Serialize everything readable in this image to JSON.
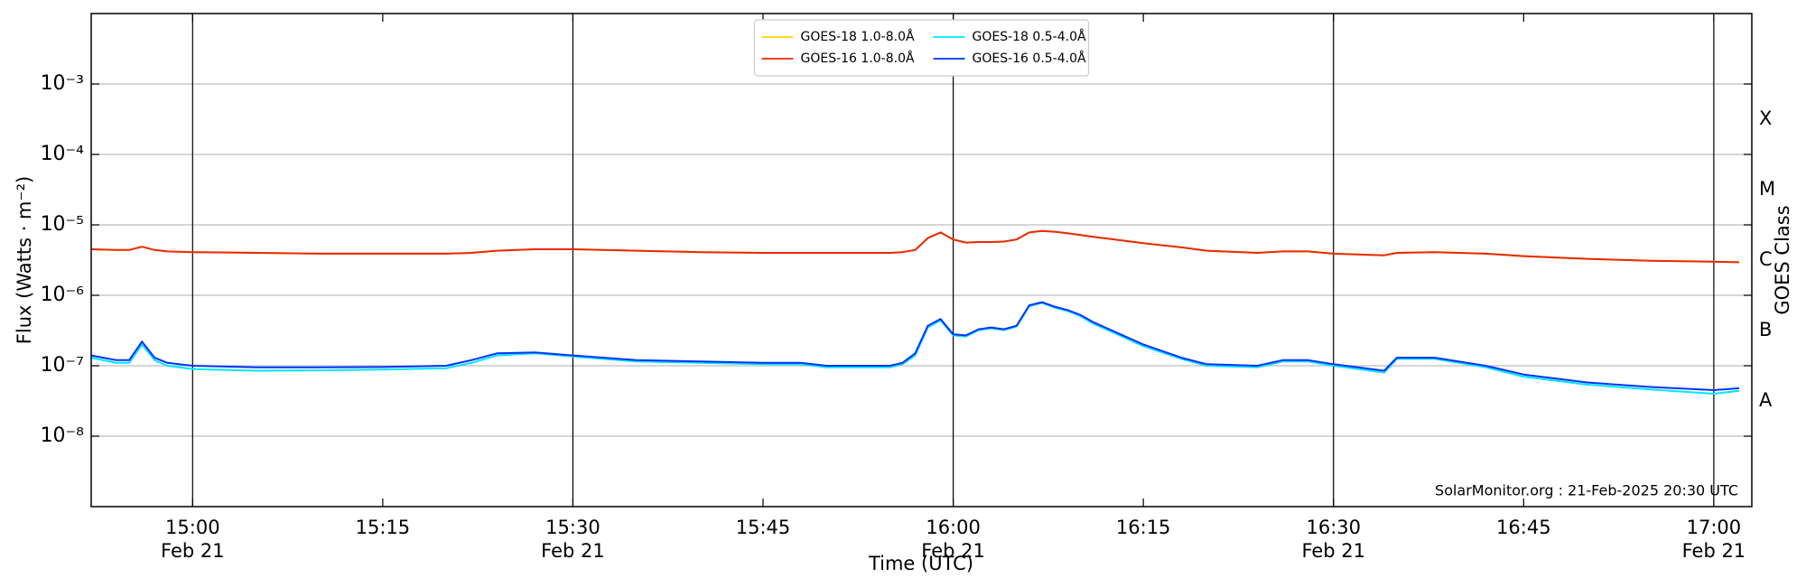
{
  "chart_data": {
    "type": "line",
    "ylabel": "Flux (Watts · m⁻²)",
    "xlabel": "Time (UTC)",
    "y2label": "GOES Class",
    "annotation": "SolarMonitor.org : 21-Feb-2025 20:30 UTC",
    "log_y": true,
    "grid": true,
    "legend_loc": "top",
    "legend_ncol": 2,
    "xlim": [
      "14:52",
      "17:03"
    ],
    "xticks": [
      {
        "value": "15:00",
        "label": "15:00\nFeb 21"
      },
      "15:15",
      {
        "value": "15:30",
        "label": "15:30\nFeb 21"
      },
      "15:45",
      {
        "value": "16:00",
        "label": "16:00\nFeb 21"
      },
      "16:15",
      {
        "value": "16:30",
        "label": "16:30\nFeb 21"
      },
      "16:45",
      {
        "value": "17:00",
        "label": "17:00\nFeb 21"
      }
    ],
    "ylim": [
      1e-09,
      0.01
    ],
    "yticks": [
      {
        "value": 1e-08,
        "label": "10⁻⁸"
      },
      {
        "value": 1e-07,
        "label": "10⁻⁷"
      },
      {
        "value": 1e-06,
        "label": "10⁻⁶"
      },
      {
        "value": 1e-05,
        "label": "10⁻⁵"
      },
      {
        "value": 0.0001,
        "label": "10⁻⁴"
      },
      {
        "value": 0.001,
        "label": "10⁻³"
      }
    ],
    "y2lim": [
      1e-09,
      0.01
    ],
    "y2ticks": [
      {
        "value": 3.16e-08,
        "label": "A"
      },
      {
        "value": 3.16e-07,
        "label": "B"
      },
      {
        "value": 3.16e-06,
        "label": "C"
      },
      {
        "value": 3.16e-05,
        "label": "M"
      },
      {
        "value": 0.000316,
        "label": "X"
      }
    ],
    "x": [
      "14:52",
      "14:54",
      "14:55",
      "14:56",
      "14:57",
      "14:58",
      "15:00",
      "15:05",
      "15:10",
      "15:15",
      "15:20",
      "15:22",
      "15:24",
      "15:27",
      "15:30",
      "15:35",
      "15:40",
      "15:45",
      "15:48",
      "15:50",
      "15:55",
      "15:56",
      "15:57",
      "15:58",
      "15:59",
      "16:00",
      "16:01",
      "16:02",
      "16:03",
      "16:04",
      "16:05",
      "16:06",
      "16:07",
      "16:08",
      "16:09",
      "16:10",
      "16:11",
      "16:15",
      "16:18",
      "16:20",
      "16:24",
      "16:26",
      "16:28",
      "16:30",
      "16:34",
      "16:35",
      "16:38",
      "16:42",
      "16:45",
      "16:50",
      "16:55",
      "17:00",
      "17:02"
    ],
    "series": [
      {
        "name": "GOES-18 1.0-8.0Å",
        "color": "#ffd700",
        "values": [
          4.5e-06,
          4.4e-06,
          4.4e-06,
          4.9e-06,
          4.4e-06,
          4.2e-06,
          4.1e-06,
          4e-06,
          3.9e-06,
          3.9e-06,
          3.9e-06,
          4e-06,
          4.3e-06,
          4.5e-06,
          4.5e-06,
          4.3e-06,
          4.1e-06,
          4e-06,
          4e-06,
          4e-06,
          4e-06,
          4.1e-06,
          4.4e-06,
          6.5e-06,
          7.8e-06,
          6.2e-06,
          5.6e-06,
          5.7e-06,
          5.7e-06,
          5.8e-06,
          6.2e-06,
          7.8e-06,
          8.2e-06,
          8e-06,
          7.6e-06,
          7.2e-06,
          6.8e-06,
          5.5e-06,
          4.8e-06,
          4.3e-06,
          4e-06,
          4.2e-06,
          4.2e-06,
          3.9e-06,
          3.7e-06,
          4e-06,
          4.1e-06,
          3.9e-06,
          3.6e-06,
          3.3e-06,
          3.1e-06,
          3e-06,
          2.95e-06
        ]
      },
      {
        "name": "GOES-16 1.0-8.0Å",
        "color": "#e8290b",
        "values": [
          4.5e-06,
          4.4e-06,
          4.4e-06,
          4.9e-06,
          4.4e-06,
          4.2e-06,
          4.1e-06,
          4e-06,
          3.9e-06,
          3.9e-06,
          3.9e-06,
          4e-06,
          4.3e-06,
          4.5e-06,
          4.5e-06,
          4.3e-06,
          4.1e-06,
          4e-06,
          4e-06,
          4e-06,
          4e-06,
          4.1e-06,
          4.4e-06,
          6.5e-06,
          7.8e-06,
          6.2e-06,
          5.6e-06,
          5.7e-06,
          5.7e-06,
          5.8e-06,
          6.2e-06,
          7.8e-06,
          8.2e-06,
          8e-06,
          7.6e-06,
          7.2e-06,
          6.8e-06,
          5.5e-06,
          4.8e-06,
          4.3e-06,
          4e-06,
          4.2e-06,
          4.2e-06,
          3.9e-06,
          3.7e-06,
          4e-06,
          4.1e-06,
          3.9e-06,
          3.6e-06,
          3.3e-06,
          3.1e-06,
          3e-06,
          2.95e-06
        ]
      },
      {
        "name": "GOES-18 0.5-4.0Å",
        "color": "#00e5ff",
        "values": [
          1.3e-07,
          1.1e-07,
          1.1e-07,
          2e-07,
          1.2e-07,
          1e-07,
          9e-08,
          8.5e-08,
          8.6e-08,
          8.8e-08,
          9.2e-08,
          1.1e-07,
          1.4e-07,
          1.5e-07,
          1.35e-07,
          1.15e-07,
          1.1e-07,
          1.05e-07,
          1.05e-07,
          9.5e-08,
          9.5e-08,
          1.05e-07,
          1.4e-07,
          3.5e-07,
          4.4e-07,
          2.7e-07,
          2.6e-07,
          3.2e-07,
          3.4e-07,
          3.2e-07,
          3.6e-07,
          7e-07,
          7.8e-07,
          6.7e-07,
          6e-07,
          5.1e-07,
          4e-07,
          1.9e-07,
          1.25e-07,
          1e-07,
          9.5e-08,
          1.15e-07,
          1.15e-07,
          1e-07,
          8e-08,
          1.25e-07,
          1.25e-07,
          9.5e-08,
          7e-08,
          5.4e-08,
          4.6e-08,
          4e-08,
          4.4e-08
        ]
      },
      {
        "name": "GOES-16 0.5-4.0Å",
        "color": "#0033ff",
        "values": [
          1.4e-07,
          1.2e-07,
          1.2e-07,
          2.2e-07,
          1.3e-07,
          1.1e-07,
          1e-07,
          9.5e-08,
          9.5e-08,
          9.6e-08,
          1e-07,
          1.2e-07,
          1.5e-07,
          1.55e-07,
          1.4e-07,
          1.2e-07,
          1.15e-07,
          1.1e-07,
          1.1e-07,
          1e-07,
          1e-07,
          1.1e-07,
          1.5e-07,
          3.7e-07,
          4.6e-07,
          2.8e-07,
          2.7e-07,
          3.3e-07,
          3.5e-07,
          3.3e-07,
          3.7e-07,
          7.2e-07,
          8e-07,
          6.9e-07,
          6.2e-07,
          5.3e-07,
          4.2e-07,
          2e-07,
          1.3e-07,
          1.05e-07,
          1e-07,
          1.2e-07,
          1.2e-07,
          1.05e-07,
          8.5e-08,
          1.3e-07,
          1.3e-07,
          1e-07,
          7.5e-08,
          5.8e-08,
          5e-08,
          4.5e-08,
          4.8e-08
        ]
      }
    ]
  }
}
